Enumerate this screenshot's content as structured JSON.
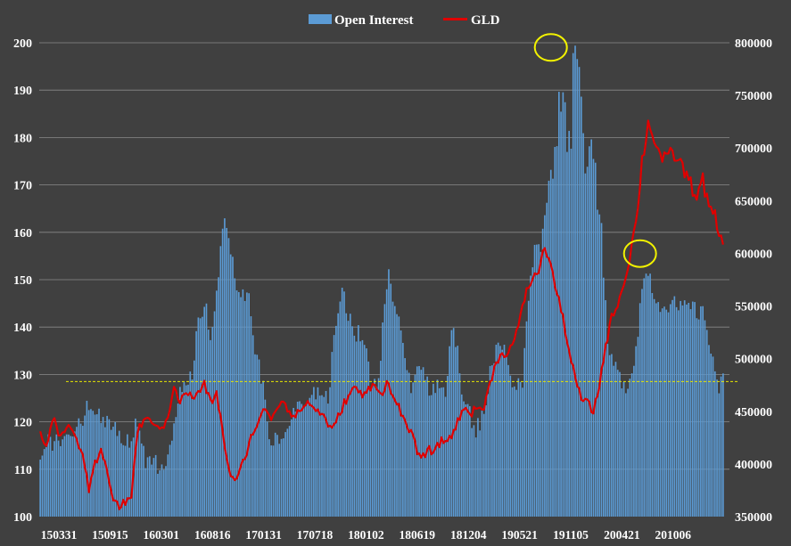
{
  "chart_data": {
    "type": "bar+line",
    "legend": {
      "placement": "top-center",
      "entries": [
        {
          "name": "Open Interest",
          "color": "#5b9bd5",
          "mark": "bar"
        },
        {
          "name": "GLD",
          "color": "#e00000",
          "mark": "line"
        }
      ]
    },
    "x_tick_labels": [
      "150331",
      "150915",
      "160301",
      "160816",
      "170131",
      "170718",
      "180102",
      "180619",
      "181204",
      "190521",
      "191105",
      "200421",
      "201006"
    ],
    "left_axis": {
      "min": 100,
      "max": 200,
      "ticks": [
        "100",
        "110",
        "120",
        "130",
        "140",
        "150",
        "160",
        "170",
        "180",
        "190",
        "200"
      ]
    },
    "right_axis": {
      "min": 350000,
      "max": 800000,
      "ticks": [
        "350000",
        "400000",
        "450000",
        "500000",
        "550000",
        "600000",
        "650000",
        "700000",
        "750000",
        "800000"
      ]
    },
    "reference_line": {
      "value": 128.5,
      "axis": "left",
      "style": "dashed",
      "color": "#e6e600"
    },
    "highlight_circles": [
      {
        "label": "peak",
        "index": 252,
        "value": 199
      },
      {
        "label": "second peak",
        "index": 296,
        "value": 155.5
      }
    ],
    "grid": "horizontal",
    "series": [
      {
        "name": "Open Interest",
        "axis": "right",
        "anchors": [
          [
            0,
            412000
          ],
          [
            4,
            420000
          ],
          [
            8,
            422000
          ],
          [
            12,
            426000
          ],
          [
            16,
            431000
          ],
          [
            20,
            440000
          ],
          [
            24,
            455000
          ],
          [
            28,
            446000
          ],
          [
            32,
            438000
          ],
          [
            36,
            433000
          ],
          [
            40,
            426000
          ],
          [
            44,
            423000
          ],
          [
            48,
            440000
          ],
          [
            50,
            415000
          ],
          [
            52,
            402000
          ],
          [
            56,
            400000
          ],
          [
            60,
            399000
          ],
          [
            63,
            410000
          ],
          [
            67,
            445000
          ],
          [
            70,
            475000
          ],
          [
            75,
            480000
          ],
          [
            78,
            545000
          ],
          [
            82,
            552000
          ],
          [
            84,
            520000
          ],
          [
            88,
            575000
          ],
          [
            90,
            628000
          ],
          [
            93,
            618000
          ],
          [
            97,
            565000
          ],
          [
            103,
            555000
          ],
          [
            106,
            513000
          ],
          [
            110,
            470000
          ],
          [
            113,
            428000
          ],
          [
            118,
            418000
          ],
          [
            122,
            434000
          ],
          [
            125,
            450000
          ],
          [
            129,
            455000
          ],
          [
            133,
            455000
          ],
          [
            137,
            474000
          ],
          [
            140,
            468000
          ],
          [
            142,
            460000
          ],
          [
            144,
            500000
          ],
          [
            146,
            528000
          ],
          [
            149,
            575000
          ],
          [
            152,
            540000
          ],
          [
            156,
            525000
          ],
          [
            160,
            518000
          ],
          [
            163,
            475000
          ],
          [
            167,
            480000
          ],
          [
            170,
            560000
          ],
          [
            172,
            578000
          ],
          [
            175,
            542000
          ],
          [
            179,
            522000
          ],
          [
            183,
            470000
          ],
          [
            186,
            500000
          ],
          [
            189,
            493000
          ],
          [
            192,
            465000
          ],
          [
            196,
            472000
          ],
          [
            200,
            470000
          ],
          [
            203,
            535000
          ],
          [
            205,
            520000
          ],
          [
            209,
            455000
          ],
          [
            212,
            450000
          ],
          [
            214,
            430000
          ],
          [
            217,
            440000
          ],
          [
            220,
            460000
          ],
          [
            223,
            498000
          ],
          [
            226,
            510000
          ],
          [
            229,
            520000
          ],
          [
            232,
            480000
          ],
          [
            235,
            475000
          ],
          [
            238,
            476000
          ],
          [
            240,
            530000
          ],
          [
            242,
            585000
          ],
          [
            244,
            600000
          ],
          [
            246,
            605000
          ],
          [
            248,
            612000
          ],
          [
            251,
            680000
          ],
          [
            254,
            688000
          ],
          [
            256,
            745000
          ],
          [
            258,
            755000
          ],
          [
            260,
            712000
          ],
          [
            262,
            700000
          ],
          [
            263,
            798000
          ],
          [
            265,
            800000
          ],
          [
            267,
            738000
          ],
          [
            269,
            690000
          ],
          [
            271,
            705000
          ],
          [
            273,
            702000
          ],
          [
            275,
            650000
          ],
          [
            277,
            620000
          ],
          [
            280,
            510000
          ],
          [
            284,
            490000
          ],
          [
            287,
            478000
          ],
          [
            290,
            475000
          ],
          [
            292,
            490000
          ],
          [
            294,
            510000
          ],
          [
            297,
            568000
          ],
          [
            300,
            585000
          ],
          [
            304,
            553000
          ],
          [
            308,
            552000
          ],
          [
            312,
            553000
          ],
          [
            316,
            546000
          ],
          [
            320,
            550000
          ],
          [
            324,
            545000
          ],
          [
            328,
            540000
          ],
          [
            332,
            500000
          ],
          [
            335,
            470000
          ],
          [
            337,
            480000
          ]
        ]
      },
      {
        "name": "GLD",
        "axis": "left",
        "anchors": [
          [
            0,
            117.5
          ],
          [
            3,
            115
          ],
          [
            6,
            121
          ],
          [
            9,
            118
          ],
          [
            12,
            117.5
          ],
          [
            15,
            119
          ],
          [
            18,
            116
          ],
          [
            21,
            113.5
          ],
          [
            24,
            105
          ],
          [
            27,
            111
          ],
          [
            30,
            113.5
          ],
          [
            33,
            110
          ],
          [
            36,
            104
          ],
          [
            39,
            102
          ],
          [
            42,
            103
          ],
          [
            45,
            104.5
          ],
          [
            48,
            118
          ],
          [
            51,
            120.5
          ],
          [
            54,
            120
          ],
          [
            57,
            120
          ],
          [
            60,
            118
          ],
          [
            63,
            121
          ],
          [
            66,
            128
          ],
          [
            69,
            124
          ],
          [
            72,
            126.5
          ],
          [
            75,
            125
          ],
          [
            78,
            126
          ],
          [
            81,
            128
          ],
          [
            84,
            124
          ],
          [
            87,
            126
          ],
          [
            90,
            118
          ],
          [
            93,
            110
          ],
          [
            96,
            107
          ],
          [
            99,
            110
          ],
          [
            102,
            114
          ],
          [
            105,
            118
          ],
          [
            108,
            120
          ],
          [
            111,
            123
          ],
          [
            114,
            121
          ],
          [
            117,
            123
          ],
          [
            120,
            125
          ],
          [
            123,
            122
          ],
          [
            126,
            121
          ],
          [
            129,
            123
          ],
          [
            132,
            124
          ],
          [
            135,
            123
          ],
          [
            138,
            122
          ],
          [
            141,
            120.5
          ],
          [
            144,
            118
          ],
          [
            147,
            121
          ],
          [
            150,
            124
          ],
          [
            153,
            126
          ],
          [
            156,
            127.5
          ],
          [
            159,
            125
          ],
          [
            162,
            127
          ],
          [
            165,
            128.5
          ],
          [
            168,
            125.5
          ],
          [
            171,
            128.5
          ],
          [
            174,
            125
          ],
          [
            177,
            123.5
          ],
          [
            180,
            119.5
          ],
          [
            183,
            117.5
          ],
          [
            186,
            114
          ],
          [
            189,
            112.5
          ],
          [
            192,
            114
          ],
          [
            195,
            114
          ],
          [
            198,
            116
          ],
          [
            201,
            116
          ],
          [
            204,
            118
          ],
          [
            207,
            121
          ],
          [
            210,
            123
          ],
          [
            213,
            122
          ],
          [
            216,
            123
          ],
          [
            219,
            123
          ],
          [
            222,
            128
          ],
          [
            225,
            133
          ],
          [
            228,
            134
          ],
          [
            231,
            135
          ],
          [
            234,
            137
          ],
          [
            237,
            142
          ],
          [
            240,
            148
          ],
          [
            243,
            150
          ],
          [
            246,
            152
          ],
          [
            249,
            157
          ],
          [
            252,
            153
          ],
          [
            255,
            147
          ],
          [
            258,
            142
          ],
          [
            261,
            135
          ],
          [
            264,
            129
          ],
          [
            267,
            125
          ],
          [
            270,
            124
          ],
          [
            273,
            122
          ],
          [
            276,
            128
          ],
          [
            279,
            136
          ],
          [
            282,
            142
          ],
          [
            285,
            145
          ],
          [
            288,
            149
          ],
          [
            291,
            155
          ],
          [
            294,
            162
          ],
          [
            297,
            175
          ],
          [
            300,
            183
          ],
          [
            303,
            180
          ],
          [
            306,
            176
          ],
          [
            309,
            175
          ],
          [
            312,
            177
          ],
          [
            315,
            175
          ],
          [
            318,
            173
          ],
          [
            321,
            170
          ],
          [
            324,
            168
          ],
          [
            327,
            171
          ],
          [
            330,
            165
          ],
          [
            333,
            163
          ],
          [
            336,
            158
          ]
        ]
      }
    ]
  }
}
